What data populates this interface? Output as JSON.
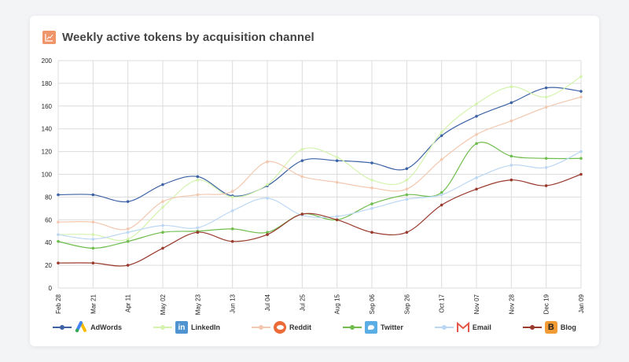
{
  "title": "Weekly active tokens by acquisition channel",
  "chart_data": {
    "type": "line",
    "title": "Weekly active tokens by acquisition channel",
    "xlabel": "",
    "ylabel": "",
    "ylim": [
      0,
      200
    ],
    "yticks": [
      0,
      20,
      40,
      60,
      80,
      100,
      120,
      140,
      160,
      180,
      200
    ],
    "grid": true,
    "legend": "bottom",
    "smooth": true,
    "categories": [
      "Feb 28",
      "Mar 21",
      "Apr 11",
      "May 02",
      "May 23",
      "Jun 13",
      "Jul 04",
      "Jul 25",
      "Aug 15",
      "Sep 06",
      "Sep 26",
      "Oct 17",
      "Nov 07",
      "Nov 28",
      "Dec 19",
      "Jan 09"
    ],
    "series": [
      {
        "name": "AdWords",
        "color": "#3d63a6",
        "icon": "adwords-logo",
        "values": [
          82,
          82,
          76,
          91,
          98,
          81,
          90,
          112,
          112,
          110,
          105,
          134,
          151,
          163,
          176,
          173
        ]
      },
      {
        "name": "LinkedIn",
        "color": "#d4f3ae",
        "icon": "linkedin-logo",
        "values": [
          47,
          47,
          43,
          71,
          95,
          80,
          91,
          122,
          115,
          95,
          95,
          137,
          162,
          177,
          168,
          186
        ]
      },
      {
        "name": "Reddit",
        "color": "#f3c8b0",
        "icon": "reddit-logo",
        "values": [
          58,
          58,
          52,
          76,
          82,
          85,
          111,
          98,
          93,
          88,
          87,
          113,
          135,
          147,
          159,
          168
        ]
      },
      {
        "name": "Twitter",
        "color": "#6fbd4d",
        "icon": "twitter-logo",
        "values": [
          41,
          35,
          41,
          49,
          50,
          52,
          49,
          65,
          60,
          74,
          82,
          84,
          127,
          116,
          114,
          114
        ]
      },
      {
        "name": "Email",
        "color": "#bcd7f4",
        "icon": "gmail-logo",
        "values": [
          47,
          43,
          49,
          55,
          53,
          68,
          79,
          64,
          63,
          70,
          78,
          82,
          97,
          108,
          106,
          120
        ]
      },
      {
        "name": "Blog",
        "color": "#993a2d",
        "icon": "blogger-logo",
        "values": [
          22,
          22,
          20,
          35,
          49,
          41,
          47,
          65,
          60,
          49,
          49,
          73,
          87,
          95,
          90,
          100
        ]
      }
    ]
  }
}
